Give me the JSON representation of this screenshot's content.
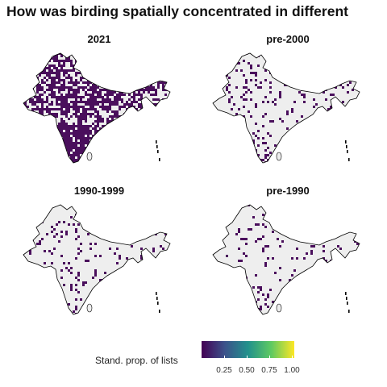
{
  "title": "How was birding spatially concentrated in different",
  "panels": [
    {
      "label": "2021",
      "density": 0.55
    },
    {
      "label": "pre-2000",
      "density": 0.1
    },
    {
      "label": "1990-1999",
      "density": 0.07
    },
    {
      "label": "pre-1990",
      "density": 0.06
    }
  ],
  "legend": {
    "title": "Stand. prop. of lists",
    "ticks": [
      "0.25",
      "0.50",
      "0.75",
      "1.00"
    ],
    "colors": [
      "#440154",
      "#3b528b",
      "#21918c",
      "#5ec962",
      "#fde725"
    ]
  },
  "map_colors": {
    "land": "#eeeeee",
    "border": "#000000",
    "cell": "#4a0f5c"
  }
}
